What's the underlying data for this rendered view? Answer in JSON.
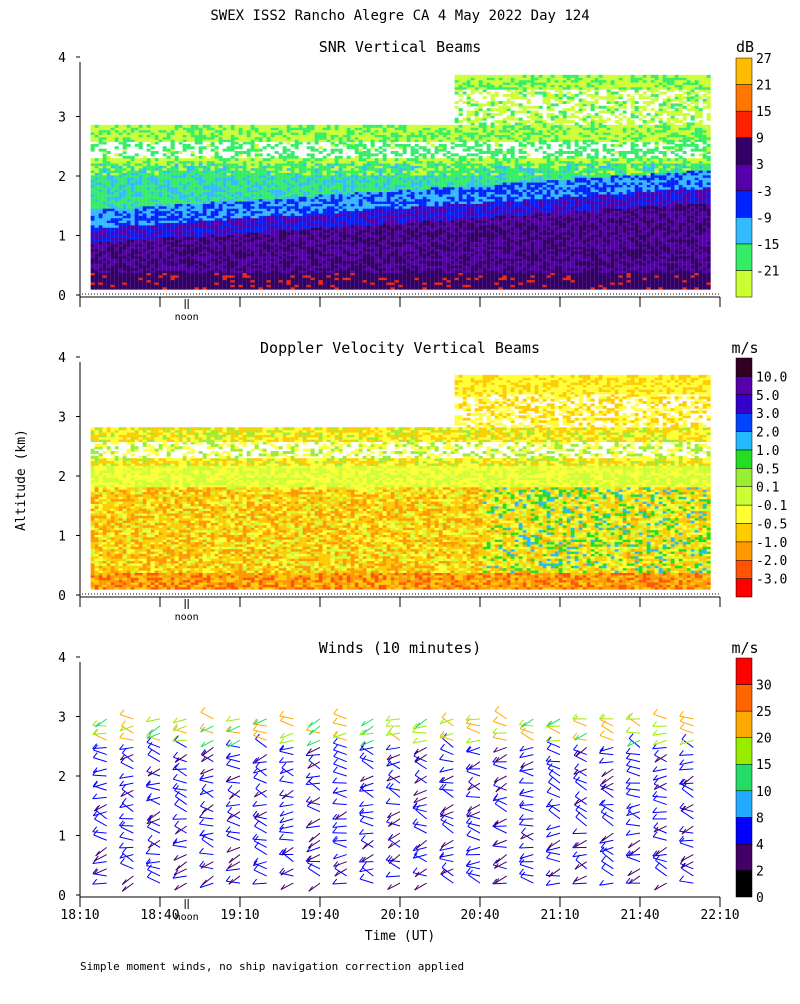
{
  "page": {
    "title": "SWEX ISS2 Rancho Alegre CA    4 May 2022 Day 124",
    "shared_ylabel": "Altitude (km)",
    "xlabel": "Time (UT)",
    "noon_marker": "noon",
    "footer": "Simple moment winds, no ship navigation correction applied"
  },
  "colors": {
    "snr_scale": [
      "#ccff33",
      "#33ee66",
      "#33bbff",
      "#0022ff",
      "#5500aa",
      "#330066",
      "#ff2200",
      "#ff7700",
      "#ffbb00"
    ],
    "doppler_scale": [
      "#ff0000",
      "#ff5500",
      "#ff9900",
      "#ffcc00",
      "#ffff33",
      "#ccff33",
      "#99ee33",
      "#22dd22",
      "#22bbff",
      "#0044ff",
      "#3300cc",
      "#5500aa",
      "#330022"
    ],
    "wind_scale": [
      "#000000",
      "#440066",
      "#0000ff",
      "#22aaff",
      "#22dd66",
      "#99ee00",
      "#ffaa00",
      "#ff6600",
      "#ff0000"
    ]
  },
  "chart_data": [
    {
      "type": "heatmap",
      "title": "SNR Vertical Beams",
      "units": "dB",
      "ylim": [
        0,
        4
      ],
      "yticks": [
        "0",
        "1",
        "2",
        "3",
        "4"
      ],
      "colorbar_labels": [
        "-21",
        "-15",
        "-9",
        "-3",
        "3",
        "9",
        "15",
        "21",
        "27"
      ],
      "time_range_minutes": [
        0,
        240
      ],
      "noon_time_minutes": 40
    },
    {
      "type": "heatmap",
      "title": "Doppler Velocity Vertical Beams",
      "units": "m/s",
      "ylim": [
        0,
        4
      ],
      "yticks": [
        "0",
        "1",
        "2",
        "3",
        "4"
      ],
      "colorbar_labels": [
        "-3.0",
        "-2.0",
        "-1.0",
        "-0.5",
        "-0.1",
        "0.1",
        "0.5",
        "1.0",
        "2.0",
        "3.0",
        "5.0",
        "10.0"
      ],
      "time_range_minutes": [
        0,
        240
      ],
      "noon_time_minutes": 40
    },
    {
      "type": "scatter",
      "title": "Winds (10 minutes)",
      "units": "m/s",
      "ylim": [
        0,
        4
      ],
      "yticks": [
        "0",
        "1",
        "2",
        "3",
        "4"
      ],
      "xtick_labels": [
        "18:10",
        "18:40",
        "19:10",
        "19:40",
        "20:10",
        "20:40",
        "21:10",
        "21:40",
        "22:10"
      ],
      "xtick_minutes": [
        0,
        30,
        60,
        90,
        120,
        150,
        180,
        210,
        240
      ],
      "colorbar_labels": [
        "0",
        "2",
        "4",
        "8",
        "10",
        "15",
        "20",
        "25",
        "30"
      ],
      "time_range_minutes": [
        0,
        240
      ],
      "noon_time_minutes": 40,
      "profile_interval_minutes": 10
    }
  ]
}
